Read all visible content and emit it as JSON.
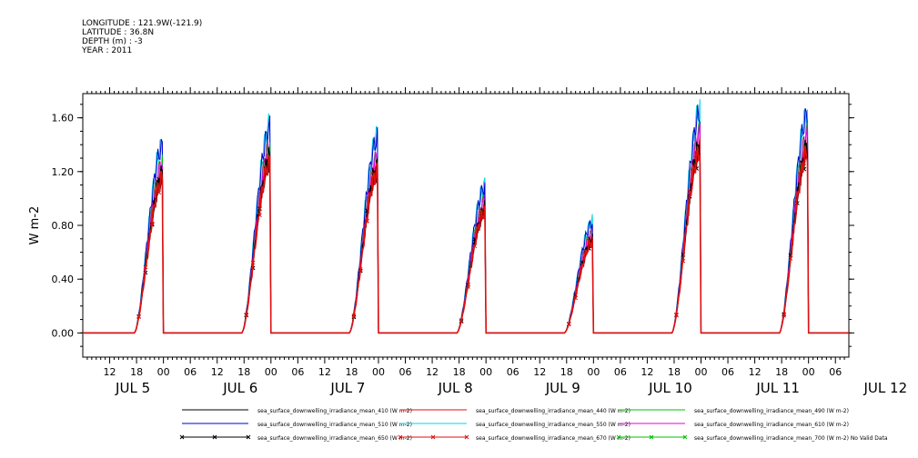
{
  "header": {
    "longitude": "LONGITUDE : 121.9W(-121.9)",
    "latitude": "LATITUDE : 36.8N",
    "depth": "DEPTH (m) : -3",
    "year": "YEAR : 2011"
  },
  "chart_data": {
    "type": "line",
    "ylabel": "W m-2",
    "ylim": [
      -0.18,
      1.78
    ],
    "yticks": [
      0.0,
      0.4,
      0.8,
      1.2,
      1.6
    ],
    "ytick_labels": [
      "0.00",
      "0.40",
      "0.80",
      "1.20",
      "1.60"
    ],
    "xlim_hours": [
      0,
      171
    ],
    "xtick_labels": [
      "12",
      "18",
      "00",
      "06",
      "12",
      "18",
      "00",
      "06",
      "12",
      "18",
      "00",
      "06",
      "12",
      "18",
      "00",
      "06",
      "12",
      "18",
      "00",
      "06",
      "12",
      "18",
      "00",
      "06",
      "12",
      "18",
      "00",
      "06"
    ],
    "day_labels": [
      "JUL  5",
      "JUL  6",
      "JUL  7",
      "JUL  8",
      "JUL  9",
      "JUL 10",
      "JUL 11",
      "JUL 12"
    ],
    "grid": false,
    "legend_position": "bottom",
    "days": [
      {
        "date": "JUL 5",
        "peak": 1.15
      },
      {
        "date": "JUL 6",
        "peak": 1.27
      },
      {
        "date": "JUL 7",
        "peak": 1.2
      },
      {
        "date": "JUL 8",
        "peak": 0.9
      },
      {
        "date": "JUL 9",
        "peak": 0.68
      },
      {
        "date": "JUL 10",
        "peak": 1.36
      },
      {
        "date": "JUL 11",
        "peak": 1.35
      }
    ],
    "series": [
      {
        "name": "sea_surface_downwelling_irradiance_mean_410 (W m-2)",
        "color": "#000000",
        "scale": 1.04
      },
      {
        "name": "sea_surface_downwelling_irradiance_mean_440 (W m-2)",
        "color": "#e01010",
        "scale": 1.02
      },
      {
        "name": "sea_surface_downwelling_irradiance_mean_490 (W m-2)",
        "color": "#00c000",
        "scale": 1.1
      },
      {
        "name": "sea_surface_downwelling_irradiance_mean_510 (W m-2)",
        "color": "#0000cc",
        "scale": 1.21
      },
      {
        "name": "sea_surface_downwelling_irradiance_mean_550 (W m-2)",
        "color": "#00d8e0",
        "scale": 1.23
      },
      {
        "name": "sea_surface_downwelling_irradiance_mean_610 (W m-2)",
        "color": "#e000e0",
        "scale": 1.1
      },
      {
        "name": "sea_surface_downwelling_irradiance_mean_650 (W m-2)",
        "color": "#000000",
        "scale": 1.0,
        "marker": "x"
      },
      {
        "name": "sea_surface_downwelling_irradiance_mean_670 (W m-2)",
        "color": "#e01010",
        "scale": 1.0,
        "marker": "x"
      },
      {
        "name": "sea_surface_downwelling_irradiance_mean_700 (W m-2) No Valid Data",
        "color": "#00c000",
        "scale": 0.0,
        "marker": "x"
      }
    ]
  }
}
